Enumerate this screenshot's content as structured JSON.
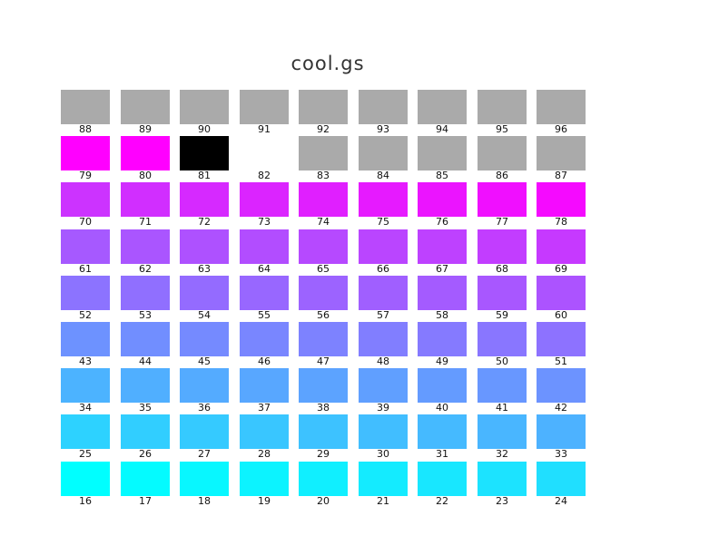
{
  "title": "cool.gs",
  "rows": [
    {
      "cells": [
        {
          "label": "88",
          "color": "#aaaaaa"
        },
        {
          "label": "89",
          "color": "#aaaaaa"
        },
        {
          "label": "90",
          "color": "#aaaaaa"
        },
        {
          "label": "91",
          "color": "#aaaaaa"
        },
        {
          "label": "92",
          "color": "#aaaaaa"
        },
        {
          "label": "93",
          "color": "#aaaaaa"
        },
        {
          "label": "94",
          "color": "#aaaaaa"
        },
        {
          "label": "95",
          "color": "#aaaaaa"
        },
        {
          "label": "96",
          "color": "#aaaaaa"
        }
      ]
    },
    {
      "cells": [
        {
          "label": "79",
          "color": "#ff00ff"
        },
        {
          "label": "80",
          "color": "#ff00ff"
        },
        {
          "label": "81",
          "color": "#000000"
        },
        {
          "label": "82",
          "color": "#ffffff"
        },
        {
          "label": "83",
          "color": "#aaaaaa"
        },
        {
          "label": "84",
          "color": "#aaaaaa"
        },
        {
          "label": "85",
          "color": "#aaaaaa"
        },
        {
          "label": "86",
          "color": "#aaaaaa"
        },
        {
          "label": "87",
          "color": "#aaaaaa"
        }
      ]
    },
    {
      "cells": [
        {
          "label": "70",
          "color": "#cc33ff"
        },
        {
          "label": "71",
          "color": "#d12eff"
        },
        {
          "label": "72",
          "color": "#d629ff"
        },
        {
          "label": "73",
          "color": "#db24ff"
        },
        {
          "label": "74",
          "color": "#e01fff"
        },
        {
          "label": "75",
          "color": "#e61aff"
        },
        {
          "label": "76",
          "color": "#eb14ff"
        },
        {
          "label": "77",
          "color": "#f00fff"
        },
        {
          "label": "78",
          "color": "#f50aff"
        }
      ]
    },
    {
      "cells": [
        {
          "label": "61",
          "color": "#a659ff"
        },
        {
          "label": "62",
          "color": "#aa55ff"
        },
        {
          "label": "63",
          "color": "#ae51ff"
        },
        {
          "label": "64",
          "color": "#b24dff"
        },
        {
          "label": "65",
          "color": "#b649ff"
        },
        {
          "label": "66",
          "color": "#ba45ff"
        },
        {
          "label": "67",
          "color": "#be41ff"
        },
        {
          "label": "68",
          "color": "#c23dff"
        },
        {
          "label": "69",
          "color": "#c639ff"
        }
      ]
    },
    {
      "cells": [
        {
          "label": "52",
          "color": "#8c73ff"
        },
        {
          "label": "53",
          "color": "#906fff"
        },
        {
          "label": "54",
          "color": "#946bff"
        },
        {
          "label": "55",
          "color": "#9867ff"
        },
        {
          "label": "56",
          "color": "#9c63ff"
        },
        {
          "label": "57",
          "color": "#a05fff"
        },
        {
          "label": "58",
          "color": "#a45bff"
        },
        {
          "label": "59",
          "color": "#a857ff"
        },
        {
          "label": "60",
          "color": "#ac53ff"
        }
      ]
    },
    {
      "cells": [
        {
          "label": "43",
          "color": "#6d92ff"
        },
        {
          "label": "44",
          "color": "#718eff"
        },
        {
          "label": "45",
          "color": "#758aff"
        },
        {
          "label": "46",
          "color": "#7986ff"
        },
        {
          "label": "47",
          "color": "#7d82ff"
        },
        {
          "label": "48",
          "color": "#817eff"
        },
        {
          "label": "49",
          "color": "#857aff"
        },
        {
          "label": "50",
          "color": "#8976ff"
        },
        {
          "label": "51",
          "color": "#8d72ff"
        }
      ]
    },
    {
      "cells": [
        {
          "label": "34",
          "color": "#4cb3ff"
        },
        {
          "label": "35",
          "color": "#50afff"
        },
        {
          "label": "36",
          "color": "#54abff"
        },
        {
          "label": "37",
          "color": "#58a7ff"
        },
        {
          "label": "38",
          "color": "#5ca3ff"
        },
        {
          "label": "39",
          "color": "#609fff"
        },
        {
          "label": "40",
          "color": "#649bff"
        },
        {
          "label": "41",
          "color": "#6897ff"
        },
        {
          "label": "42",
          "color": "#6c93ff"
        }
      ]
    },
    {
      "cells": [
        {
          "label": "25",
          "color": "#2dd2ff"
        },
        {
          "label": "26",
          "color": "#31ceff"
        },
        {
          "label": "27",
          "color": "#35caff"
        },
        {
          "label": "28",
          "color": "#39c6ff"
        },
        {
          "label": "29",
          "color": "#3dc2ff"
        },
        {
          "label": "30",
          "color": "#41beff"
        },
        {
          "label": "31",
          "color": "#45baff"
        },
        {
          "label": "32",
          "color": "#49b6ff"
        },
        {
          "label": "33",
          "color": "#4db2ff"
        }
      ]
    },
    {
      "cells": [
        {
          "label": "16",
          "color": "#00ffff"
        },
        {
          "label": "17",
          "color": "#04fbff"
        },
        {
          "label": "18",
          "color": "#08f7ff"
        },
        {
          "label": "19",
          "color": "#0cf3ff"
        },
        {
          "label": "20",
          "color": "#10efff"
        },
        {
          "label": "21",
          "color": "#14ebff"
        },
        {
          "label": "22",
          "color": "#18e7ff"
        },
        {
          "label": "23",
          "color": "#1ce3ff"
        },
        {
          "label": "24",
          "color": "#20dfff"
        }
      ]
    }
  ]
}
